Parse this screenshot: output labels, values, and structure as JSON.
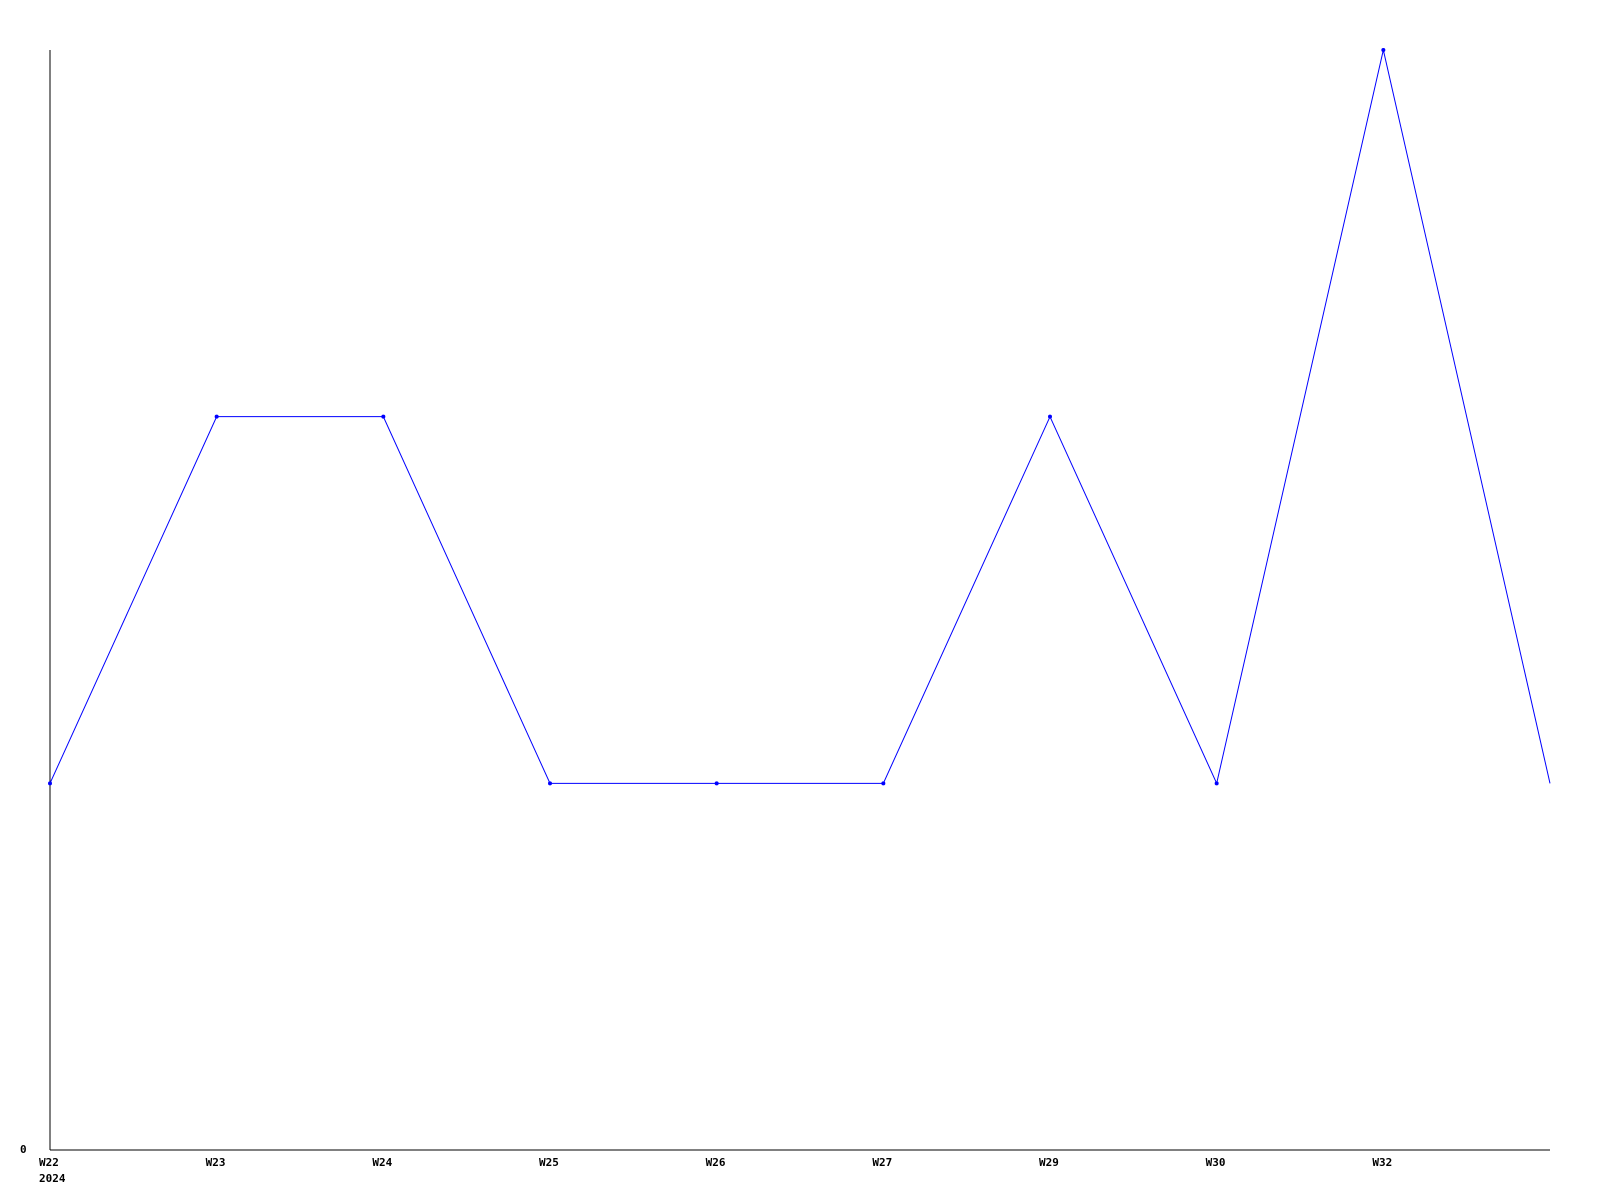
{
  "chart_data": {
    "type": "line",
    "title": "",
    "xlabel": "",
    "ylabel": "",
    "categories": [
      "W22",
      "W23",
      "W24",
      "W25",
      "W26",
      "W27",
      "W29",
      "W30",
      "W32",
      ""
    ],
    "x_sublabel": "2024",
    "series": [
      {
        "values": [
          1,
          2,
          2,
          1,
          1,
          1,
          2,
          1,
          3,
          1
        ]
      }
    ],
    "ylim": [
      0,
      3
    ],
    "y_tick_labels": [
      "0"
    ],
    "grid": false,
    "legend": "none",
    "colors": {
      "line": "#0000ff",
      "axis": "#000000"
    }
  }
}
